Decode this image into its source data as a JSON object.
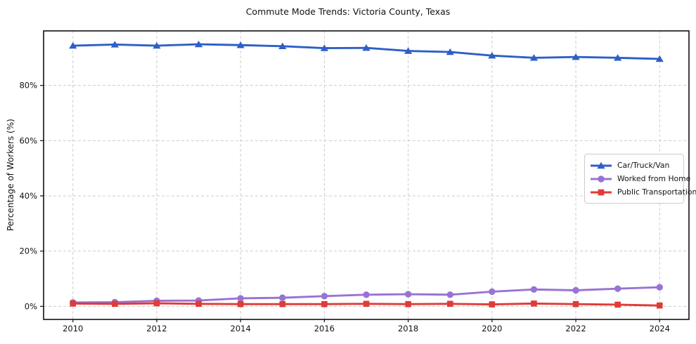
{
  "chart_data": {
    "type": "line",
    "title": "Commute Mode Trends: Victoria County, Texas",
    "xlabel": "",
    "ylabel": "Percentage of Workers (%)",
    "x": [
      2010,
      2011,
      2012,
      2013,
      2014,
      2015,
      2016,
      2017,
      2018,
      2019,
      2020,
      2021,
      2022,
      2023,
      2024
    ],
    "series": [
      {
        "name": "Car/Truck/Van",
        "color": "#2d5fc7",
        "marker": "triangle-up",
        "values": [
          94.4,
          94.8,
          94.4,
          94.9,
          94.6,
          94.2,
          93.5,
          93.6,
          92.5,
          92.1,
          90.8,
          90.0,
          90.3,
          90.0,
          89.6
        ]
      },
      {
        "name": "Worked from Home",
        "color": "#9873d4",
        "marker": "circle",
        "values": [
          1.4,
          1.5,
          2.0,
          2.1,
          2.9,
          3.1,
          3.7,
          4.2,
          4.4,
          4.2,
          5.3,
          6.1,
          5.8,
          6.4,
          6.9
        ]
      },
      {
        "name": "Public Transportation",
        "color": "#e03b36",
        "marker": "square",
        "values": [
          1.0,
          0.9,
          1.1,
          0.9,
          0.8,
          0.8,
          0.8,
          0.9,
          0.8,
          0.9,
          0.7,
          1.0,
          0.8,
          0.6,
          0.3
        ]
      }
    ],
    "xticks": [
      2010,
      2012,
      2014,
      2016,
      2018,
      2020,
      2022,
      2024
    ],
    "xticklabels": [
      "2010",
      "2012",
      "2014",
      "2016",
      "2018",
      "2020",
      "2022",
      "2024"
    ],
    "yticks": [
      0,
      20,
      40,
      60,
      80
    ],
    "yticklabels": [
      "0%",
      "20%",
      "40%",
      "60%",
      "80%"
    ],
    "xlim": [
      2009.3,
      2024.7
    ],
    "ylim": [
      -4.75,
      99.75
    ],
    "grid": true,
    "grid_style": "dashed",
    "grid_color": "#cccccc",
    "spine_color": "#111111",
    "legend_position": "center right"
  }
}
